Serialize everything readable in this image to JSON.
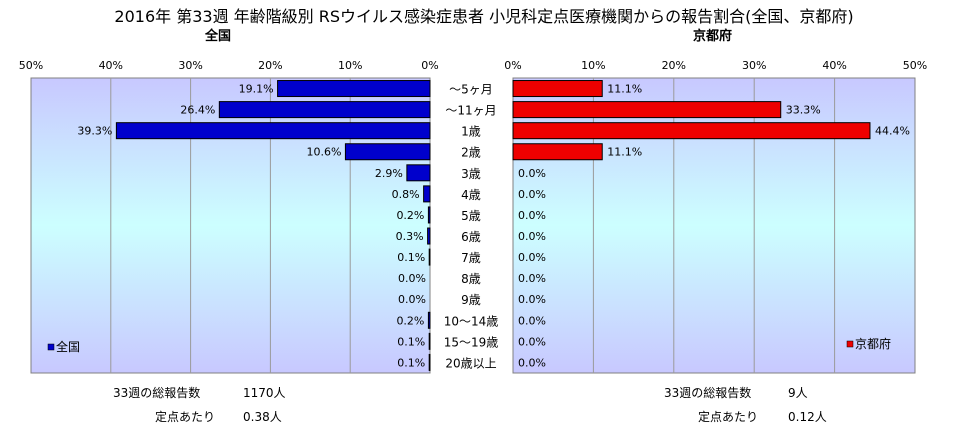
{
  "title": "2016年 第33週 年齢階級別 RSウイルス感染症患者 小児科定点医療機関からの報告割合(全国、京都府)",
  "colors": {
    "national_bar": "#0000cc",
    "kyoto_bar": "#ee0000",
    "plot_top": "#c8c8ff",
    "plot_mid": "#ccffff",
    "plot_bottom": "#c8c8ff"
  },
  "chart_data": [
    {
      "type": "bar",
      "orientation": "horizontal",
      "direction": "right-to-left",
      "title": "全国",
      "legend": "全国",
      "legend_placement": "bottom-left",
      "xlim": [
        0,
        50
      ],
      "x_ticks": [
        "50%",
        "40%",
        "30%",
        "20%",
        "10%",
        "0%"
      ],
      "grid": true,
      "categories": [
        "～5ヶ月",
        "～11ヶ月",
        "1歳",
        "2歳",
        "3歳",
        "4歳",
        "5歳",
        "6歳",
        "7歳",
        "8歳",
        "9歳",
        "10～14歳",
        "15～19歳",
        "20歳以上"
      ],
      "values": [
        19.1,
        26.4,
        39.3,
        10.6,
        2.9,
        0.8,
        0.2,
        0.3,
        0.1,
        0.0,
        0.0,
        0.2,
        0.1,
        0.1
      ],
      "labels": [
        "19.1%",
        "26.4%",
        "39.3%",
        "10.6%",
        "2.9%",
        "0.8%",
        "0.2%",
        "0.3%",
        "0.1%",
        "0.0%",
        "0.0%",
        "0.2%",
        "0.1%",
        "0.1%"
      ]
    },
    {
      "type": "bar",
      "orientation": "horizontal",
      "direction": "left-to-right",
      "title": "京都府",
      "legend": "京都府",
      "legend_placement": "bottom-right",
      "xlim": [
        0,
        50
      ],
      "x_ticks": [
        "0%",
        "10%",
        "20%",
        "30%",
        "40%",
        "50%"
      ],
      "grid": true,
      "categories": [
        "～5ヶ月",
        "～11ヶ月",
        "1歳",
        "2歳",
        "3歳",
        "4歳",
        "5歳",
        "6歳",
        "7歳",
        "8歳",
        "9歳",
        "10～14歳",
        "15～19歳",
        "20歳以上"
      ],
      "values": [
        11.1,
        33.3,
        44.4,
        11.1,
        0.0,
        0.0,
        0.0,
        0.0,
        0.0,
        0.0,
        0.0,
        0.0,
        0.0,
        0.0
      ],
      "labels": [
        "11.1%",
        "33.3%",
        "44.4%",
        "11.1%",
        "0.0%",
        "0.0%",
        "0.0%",
        "0.0%",
        "0.0%",
        "0.0%",
        "0.0%",
        "0.0%",
        "0.0%",
        "0.0%"
      ]
    }
  ],
  "footer": {
    "national": {
      "total_label": "33週の総報告数",
      "total_value": "1170人",
      "per_site_label": "定点あたり",
      "per_site_value": "0.38人"
    },
    "kyoto": {
      "total_label": "33週の総報告数",
      "total_value": "9人",
      "per_site_label": "定点あたり",
      "per_site_value": "0.12人"
    }
  }
}
